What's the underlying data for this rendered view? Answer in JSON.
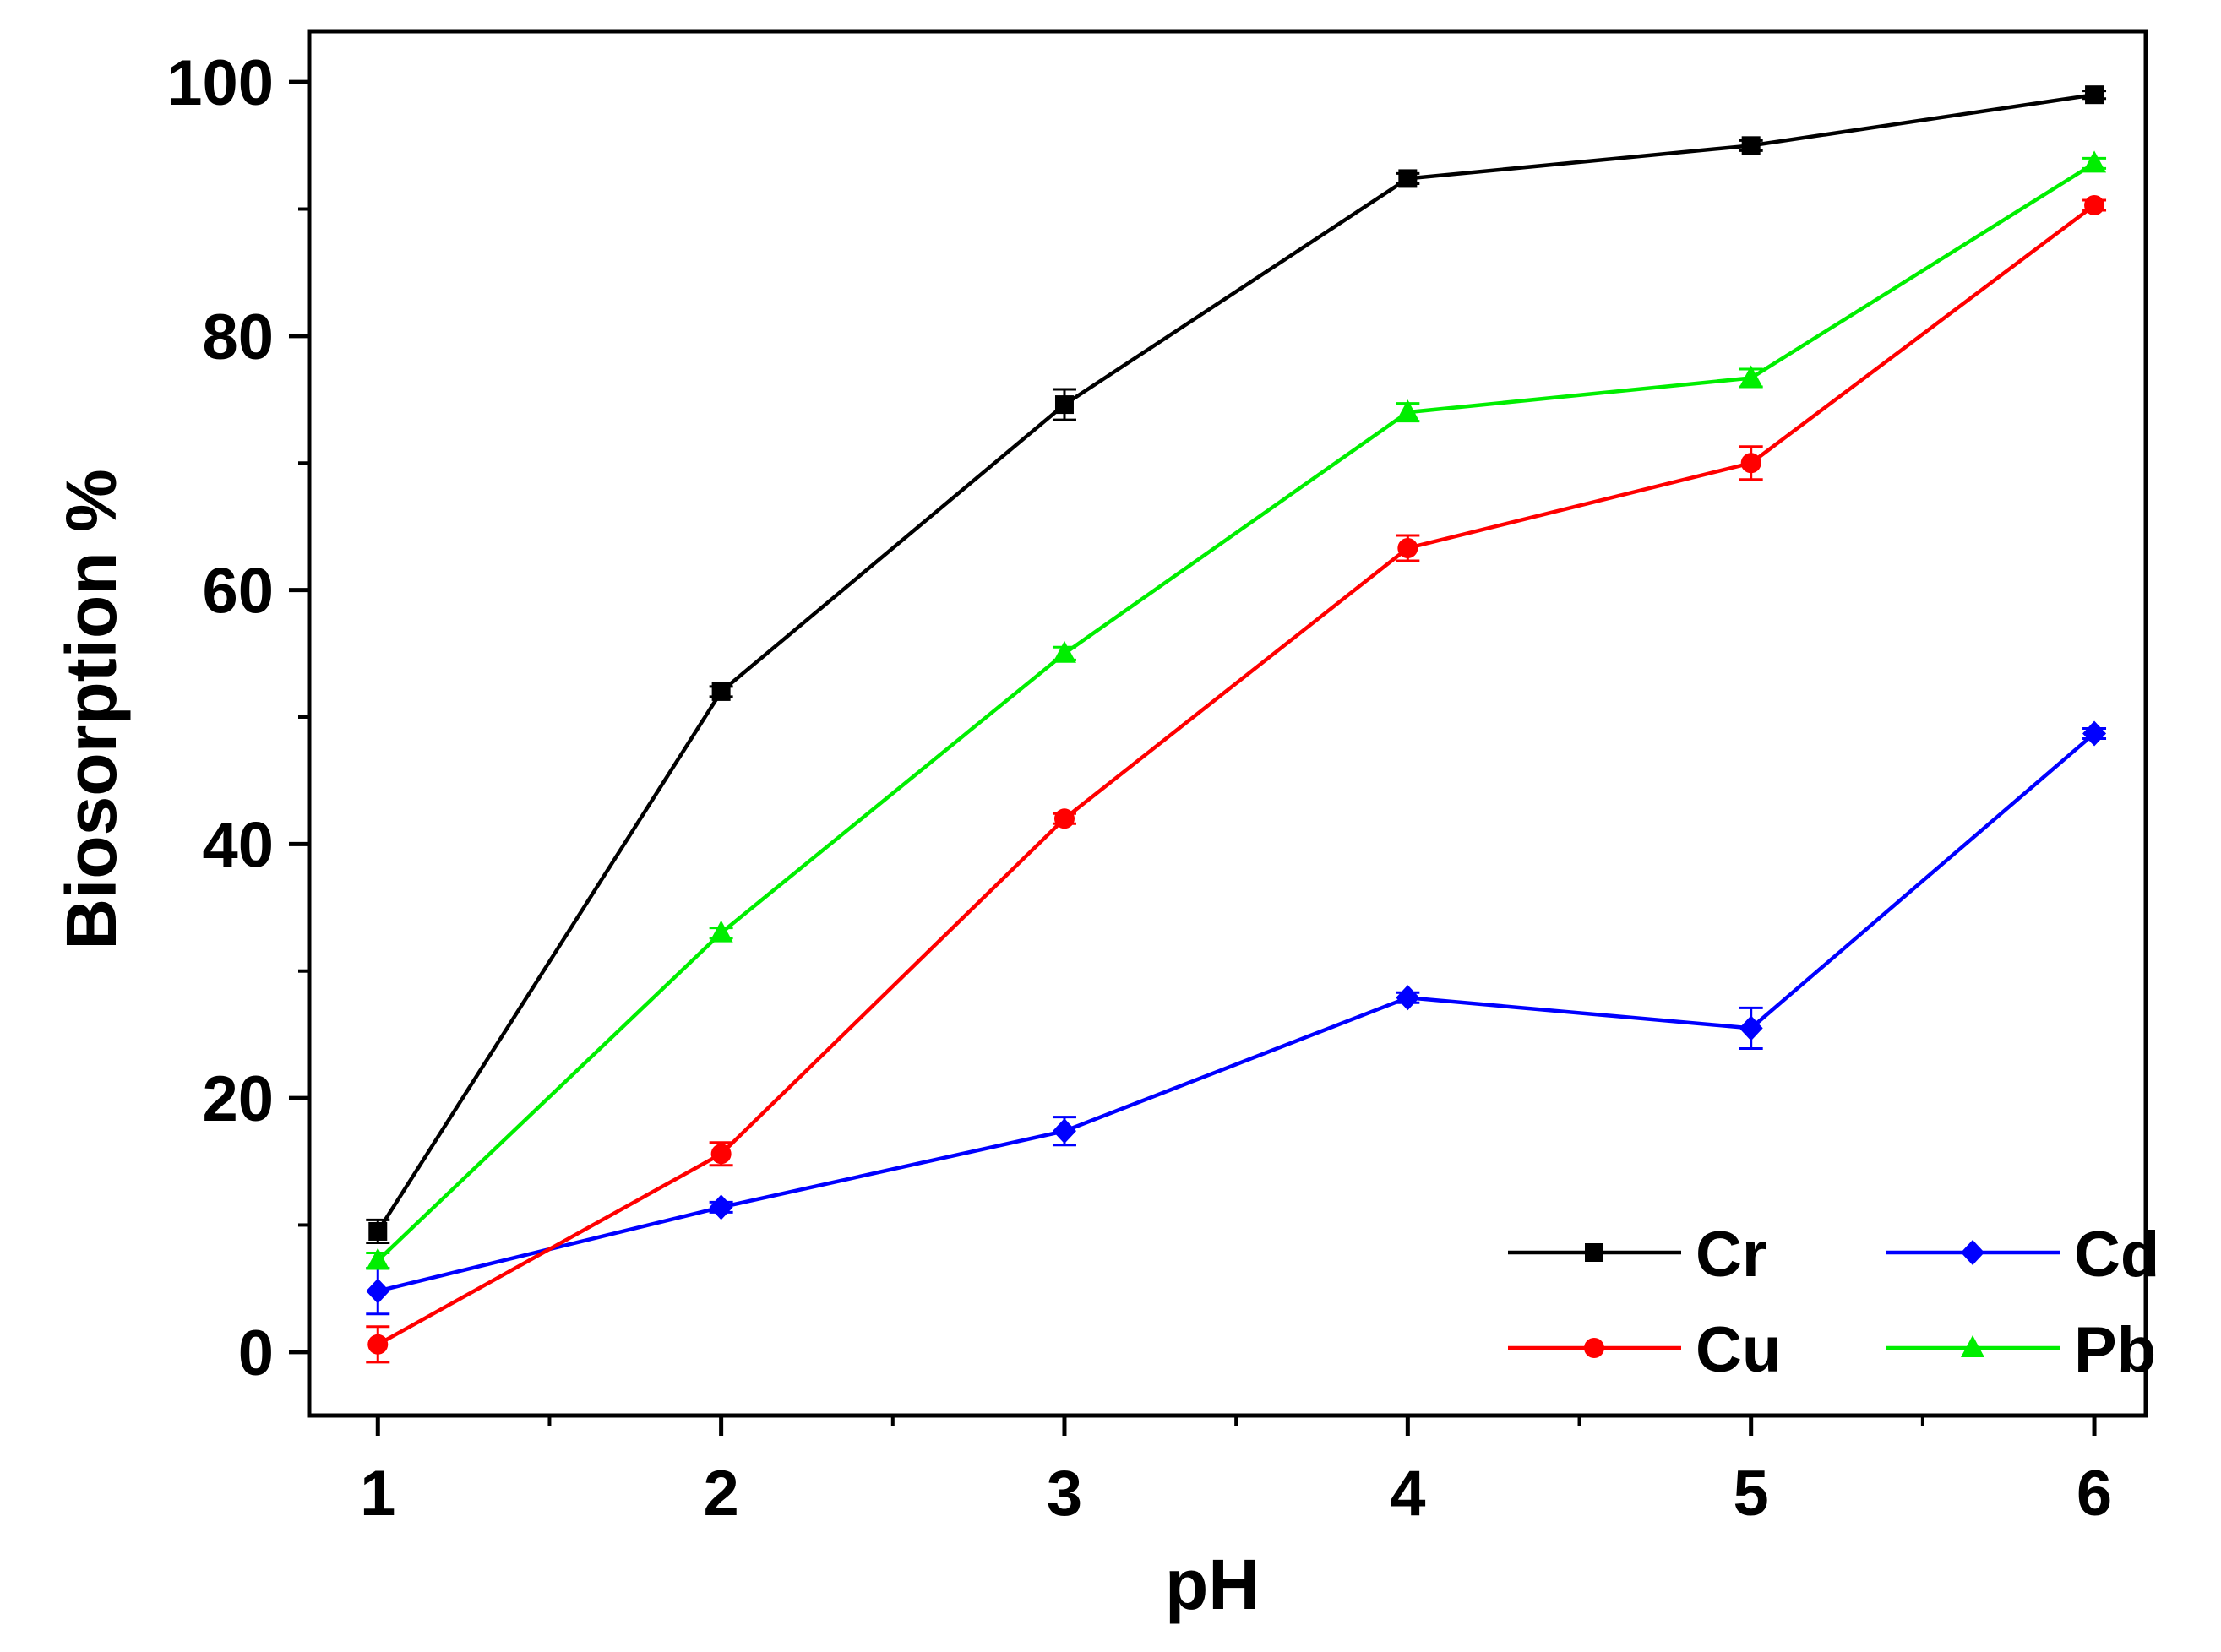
{
  "chart_data": {
    "type": "line",
    "title": "",
    "xlabel": "pH",
    "ylabel": "Biosorption %",
    "x": [
      1,
      2,
      3,
      4,
      5,
      6
    ],
    "xticks": [
      "1",
      "2",
      "3",
      "4",
      "5",
      "6"
    ],
    "yticks": [
      "0",
      "20",
      "40",
      "60",
      "80",
      "100"
    ],
    "xlim": [
      0.8,
      6.15
    ],
    "ylim": [
      -5,
      104
    ],
    "grid": false,
    "legend_position": "bottom-right",
    "series": [
      {
        "name": "Cr",
        "color": "#000000",
        "marker": "square",
        "values": [
          9.5,
          52.0,
          74.6,
          92.4,
          95.0,
          99.0
        ],
        "errors": [
          0.9,
          0.4,
          1.2,
          0.4,
          0.4,
          0.3
        ]
      },
      {
        "name": "Cu",
        "color": "#ff0000",
        "marker": "circle",
        "values": [
          0.6,
          15.6,
          42.0,
          63.3,
          70.0,
          90.3
        ],
        "errors": [
          1.4,
          0.9,
          0.4,
          1.0,
          1.3,
          0.4
        ]
      },
      {
        "name": "Cd",
        "color": "#0000ff",
        "marker": "diamond",
        "values": [
          4.8,
          11.4,
          17.4,
          27.9,
          25.5,
          48.7
        ],
        "errors": [
          1.8,
          0.4,
          1.1,
          0.4,
          1.6,
          0.4
        ]
      },
      {
        "name": "Pb",
        "color": "#00ee00",
        "marker": "triangle",
        "values": [
          7.2,
          33.0,
          55.0,
          74.0,
          76.7,
          93.6
        ],
        "errors": [
          0.6,
          0.4,
          0.5,
          0.7,
          0.7,
          0.4
        ]
      }
    ]
  }
}
